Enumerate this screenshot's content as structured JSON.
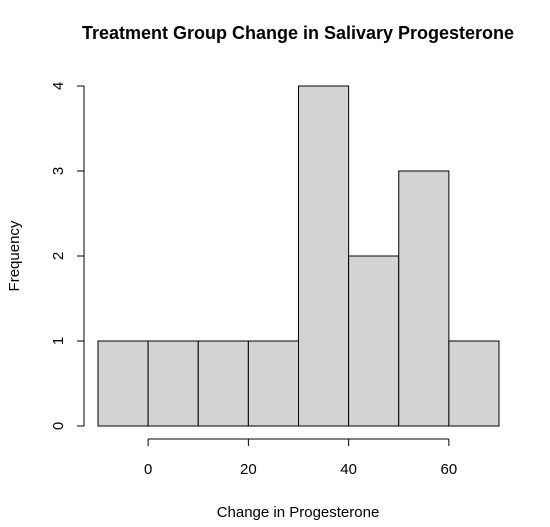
{
  "chart_data": {
    "type": "bar",
    "title": "Treatment Group Change in Salivary Progesterone",
    "xlabel": "Change in Progesterone",
    "ylabel": "Frequency",
    "bins": [
      {
        "from": -10,
        "to": 0,
        "count": 1
      },
      {
        "from": 0,
        "to": 10,
        "count": 1
      },
      {
        "from": 10,
        "to": 20,
        "count": 1
      },
      {
        "from": 20,
        "to": 30,
        "count": 1
      },
      {
        "from": 30,
        "to": 40,
        "count": 4
      },
      {
        "from": 40,
        "to": 50,
        "count": 2
      },
      {
        "from": 50,
        "to": 60,
        "count": 3
      },
      {
        "from": 60,
        "to": 70,
        "count": 1
      }
    ],
    "xlim": [
      -10,
      70
    ],
    "ylim": [
      0,
      4
    ],
    "x_ticks": [
      "0",
      "20",
      "40",
      "60"
    ],
    "y_ticks": [
      "0",
      "1",
      "2",
      "3",
      "4"
    ],
    "grid": false,
    "legend": "none"
  }
}
